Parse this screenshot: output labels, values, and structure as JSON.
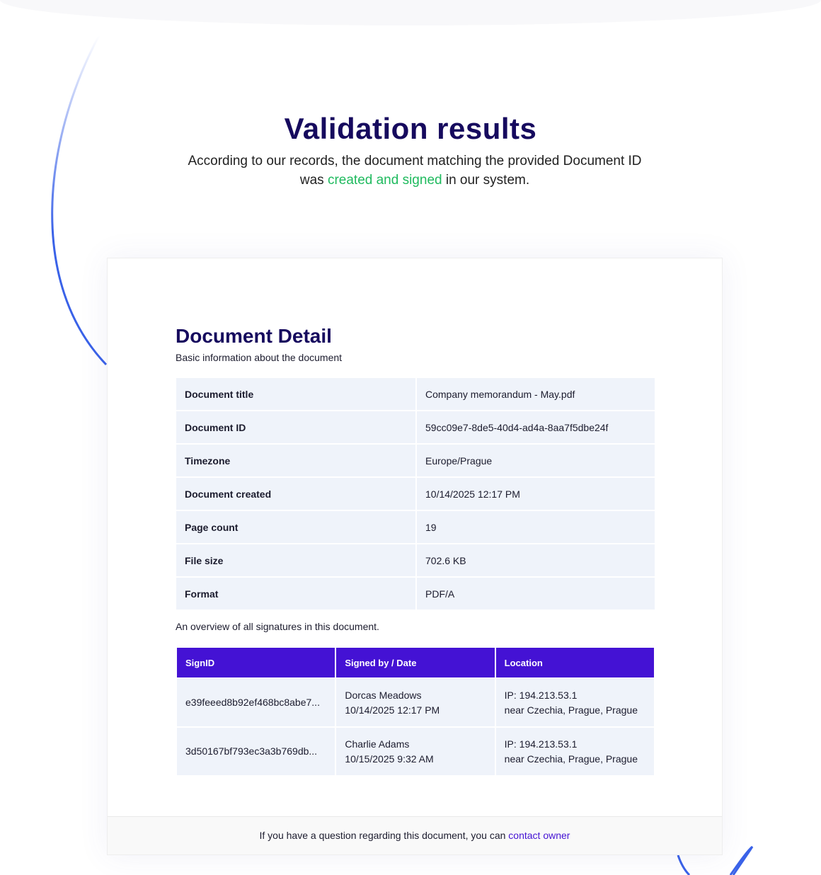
{
  "header": {
    "title": "Validation results",
    "subtitle_pre": "According to our records, the document matching the provided Document ID was ",
    "subtitle_highlight": "created and signed",
    "subtitle_post": " in our system."
  },
  "colors": {
    "accent": "#4412d4",
    "highlight": "#1fba5e",
    "title": "#160a5e"
  },
  "detail": {
    "title": "Document Detail",
    "description": "Basic information about the document",
    "rows": [
      [
        "Document title",
        "Company memorandum - May.pdf"
      ],
      [
        "Document ID",
        "59cc09e7-8de5-40d4-ad4a-8aa7f5dbe24f"
      ],
      [
        "Timezone",
        "Europe/Prague"
      ],
      [
        "Document created",
        "10/14/2025 12:17 PM"
      ],
      [
        "Page count",
        "19"
      ],
      [
        "File size",
        "702.6 KB"
      ],
      [
        "Format",
        "PDF/A"
      ]
    ]
  },
  "signatures": {
    "overview": "An overview of all signatures in this document.",
    "headers": [
      "SignID",
      "Signed by / Date",
      "Location"
    ],
    "rows": [
      {
        "id": "e39feeed8b92ef468bc8abe7...",
        "name": "Dorcas Meadows",
        "date": "10/14/2025 12:17 PM",
        "ip": "IP: 194.213.53.1",
        "loc": "near Czechia, Prague, Prague"
      },
      {
        "id": "3d50167bf793ec3a3b769db...",
        "name": "Charlie Adams",
        "date": "10/15/2025 9:32 AM",
        "ip": "IP: 194.213.53.1",
        "loc": "near Czechia, Prague, Prague"
      }
    ]
  },
  "footer": {
    "text": "If you have a question regarding this document, you can ",
    "link": "contact owner"
  }
}
